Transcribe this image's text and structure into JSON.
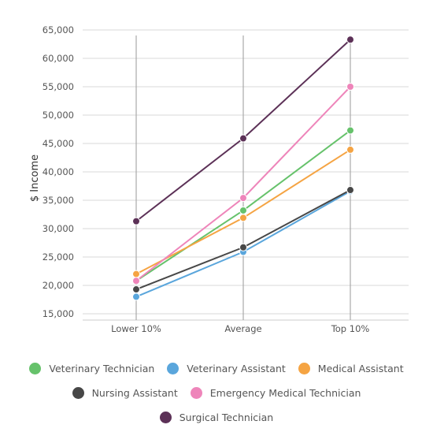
{
  "chart_data": {
    "type": "line",
    "title": "",
    "xlabel": "",
    "ylabel": "$ Income",
    "categories": [
      "Lower 10%",
      "Average",
      "Top 10%"
    ],
    "ylim": [
      15000,
      65000
    ],
    "yticks": [
      15000,
      20000,
      25000,
      30000,
      35000,
      40000,
      45000,
      50000,
      55000,
      60000,
      65000
    ],
    "ytick_labels": [
      "15,000",
      "20,000",
      "25,000",
      "30,000",
      "35,000",
      "40,000",
      "45,000",
      "50,000",
      "55,000",
      "60,000",
      "65,000"
    ],
    "grid": true,
    "legend_position": "bottom",
    "series": [
      {
        "name": "Veterinary Technician",
        "color": "#66c26b",
        "values": [
          20800,
          33200,
          47300
        ]
      },
      {
        "name": "Veterinary Assistant",
        "color": "#5aa6dc",
        "values": [
          18000,
          25900,
          36600
        ]
      },
      {
        "name": "Medical Assistant",
        "color": "#f5a443",
        "values": [
          22000,
          31900,
          43900
        ]
      },
      {
        "name": "Nursing Assistant",
        "color": "#474747",
        "values": [
          19300,
          26700,
          36800
        ]
      },
      {
        "name": "Emergency Medical Technician",
        "color": "#ee85ba",
        "values": [
          20800,
          35400,
          55000
        ]
      },
      {
        "name": "Surgical Technician",
        "color": "#5c3157",
        "values": [
          31300,
          45900,
          63300
        ]
      }
    ]
  }
}
